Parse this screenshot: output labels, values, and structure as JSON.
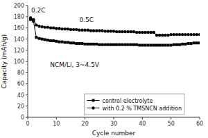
{
  "chart_data": {
    "type": "line",
    "title": "",
    "xlabel": "Cycle number",
    "ylabel": "Capacity (mAh/g)",
    "xlim": [
      0,
      60
    ],
    "ylim": [
      0,
      200
    ],
    "xticks": [
      0,
      10,
      20,
      30,
      40,
      50,
      60
    ],
    "yticks": [
      0,
      20,
      40,
      60,
      80,
      100,
      120,
      140,
      160,
      180,
      200
    ],
    "grid": false,
    "legend": "lower-center",
    "annotations": [
      "0.2C",
      "0.5C",
      "NCM/Li, 3~4.5V"
    ],
    "x": [
      1,
      2,
      3,
      4,
      5,
      6,
      7,
      8,
      9,
      10,
      11,
      12,
      13,
      14,
      15,
      16,
      17,
      18,
      19,
      20,
      21,
      22,
      23,
      24,
      25,
      26,
      27,
      28,
      29,
      30,
      31,
      32,
      33,
      34,
      35,
      36,
      37,
      38,
      39,
      40,
      41,
      42,
      43,
      44,
      45,
      46,
      47,
      48,
      49,
      50,
      51,
      52,
      53,
      54,
      55,
      56,
      57,
      58,
      59,
      60
    ],
    "series": [
      {
        "name": "control electrolyte",
        "color": "#000000",
        "marker": "square",
        "values": [
          175,
          172,
          143,
          141,
          140,
          139,
          138,
          137,
          137,
          136,
          135,
          135,
          134,
          134,
          133,
          133,
          132,
          132,
          132,
          131,
          131,
          131,
          131,
          131,
          130,
          130,
          130,
          130,
          130,
          130,
          130,
          130,
          130,
          130,
          130,
          130,
          130,
          130,
          129,
          129,
          129,
          129,
          129,
          129,
          129,
          129,
          129,
          129,
          129,
          129,
          130,
          130,
          130,
          131,
          131,
          132,
          132,
          133,
          133,
          133
        ]
      },
      {
        "name": "with 0.2 % TMSNCN addition",
        "color": "#000000",
        "marker": "circle",
        "values": [
          178,
          175,
          165,
          163,
          162,
          161,
          161,
          160,
          160,
          159,
          159,
          158,
          158,
          158,
          157,
          157,
          157,
          156,
          156,
          156,
          156,
          155,
          155,
          155,
          155,
          155,
          154,
          154,
          154,
          154,
          153,
          153,
          153,
          153,
          153,
          153,
          153,
          152,
          152,
          152,
          152,
          152,
          152,
          152,
          147,
          147,
          147,
          147,
          147,
          148,
          148,
          148,
          148,
          148,
          148,
          148,
          148,
          148,
          148,
          148
        ]
      }
    ]
  }
}
